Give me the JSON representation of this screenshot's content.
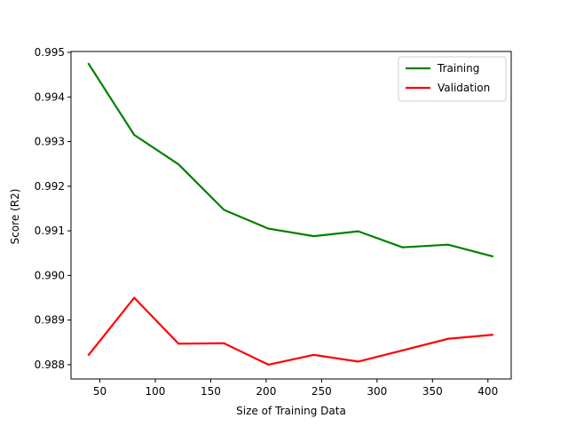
{
  "chart_data": {
    "type": "line",
    "title": "",
    "xlabel": "Size of Training Data",
    "ylabel": "Score (R2)",
    "xlim": [
      24,
      421
    ],
    "ylim": [
      0.98768,
      0.99502
    ],
    "xticks": [
      50,
      100,
      150,
      200,
      250,
      300,
      350,
      400
    ],
    "yticks": [
      0.988,
      0.989,
      0.99,
      0.991,
      0.992,
      0.993,
      0.994,
      0.995
    ],
    "ytick_labels": [
      "0.988",
      "0.989",
      "0.990",
      "0.991",
      "0.992",
      "0.993",
      "0.994",
      "0.995"
    ],
    "grid": false,
    "legend": "top-right",
    "series": [
      {
        "name": "Training",
        "color": "#008000",
        "x": [
          40,
          81,
          121,
          162,
          202,
          243,
          283,
          323,
          364,
          404
        ],
        "y": [
          0.99474,
          0.99315,
          0.99249,
          0.99147,
          0.99105,
          0.99088,
          0.99099,
          0.99063,
          0.99069,
          0.99043
        ]
      },
      {
        "name": "Validation",
        "color": "#ff0000",
        "x": [
          40,
          81,
          121,
          162,
          202,
          243,
          283,
          323,
          364,
          404
        ],
        "y": [
          0.98822,
          0.9895,
          0.98847,
          0.98848,
          0.988,
          0.98822,
          0.98807,
          0.98832,
          0.98858,
          0.98867
        ]
      }
    ]
  }
}
